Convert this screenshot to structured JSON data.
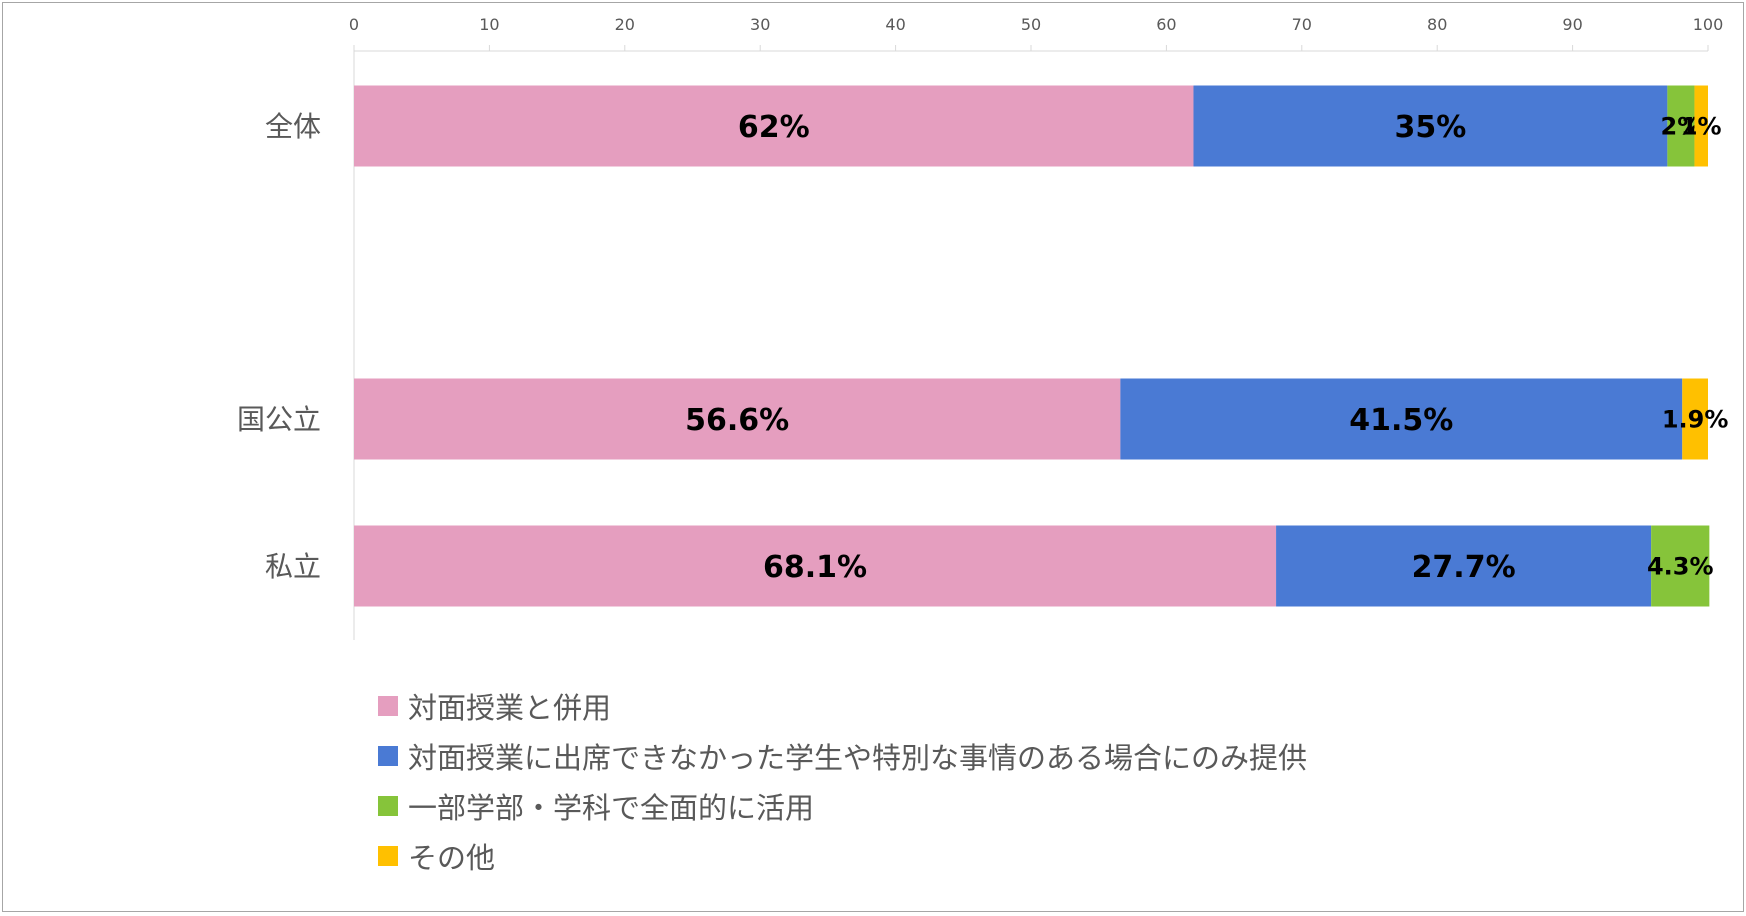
{
  "chart_data": {
    "type": "bar",
    "orientation": "horizontal",
    "stacked": true,
    "categories": [
      "全体",
      "国公立",
      "私立"
    ],
    "xlim": [
      0,
      100
    ],
    "xticks": [
      0,
      10,
      20,
      30,
      40,
      50,
      60,
      70,
      80,
      90,
      100
    ],
    "series": [
      {
        "name": "対面授業と併用",
        "color": "#e59ebf",
        "values": [
          62,
          56.6,
          68.1
        ],
        "labels": [
          "62%",
          "56.6%",
          "68.1%"
        ]
      },
      {
        "name": "対面授業に出席できなかった学生や特別な事情のある場合にのみ提供",
        "color": "#4a7ad4",
        "values": [
          35,
          41.5,
          27.7
        ],
        "labels": [
          "35%",
          "41.5%",
          "27.7%"
        ]
      },
      {
        "name": "一部学部・学科で全面的に活用",
        "color": "#86c43a",
        "values": [
          2,
          0,
          4.3
        ],
        "labels": [
          "2%",
          "",
          "4.3%"
        ]
      },
      {
        "name": "その他",
        "color": "#ffc000",
        "values": [
          1,
          1.9,
          0
        ],
        "labels": [
          "1%",
          "1.9%",
          ""
        ]
      }
    ],
    "grid": false,
    "legend_position": "bottom-left"
  }
}
